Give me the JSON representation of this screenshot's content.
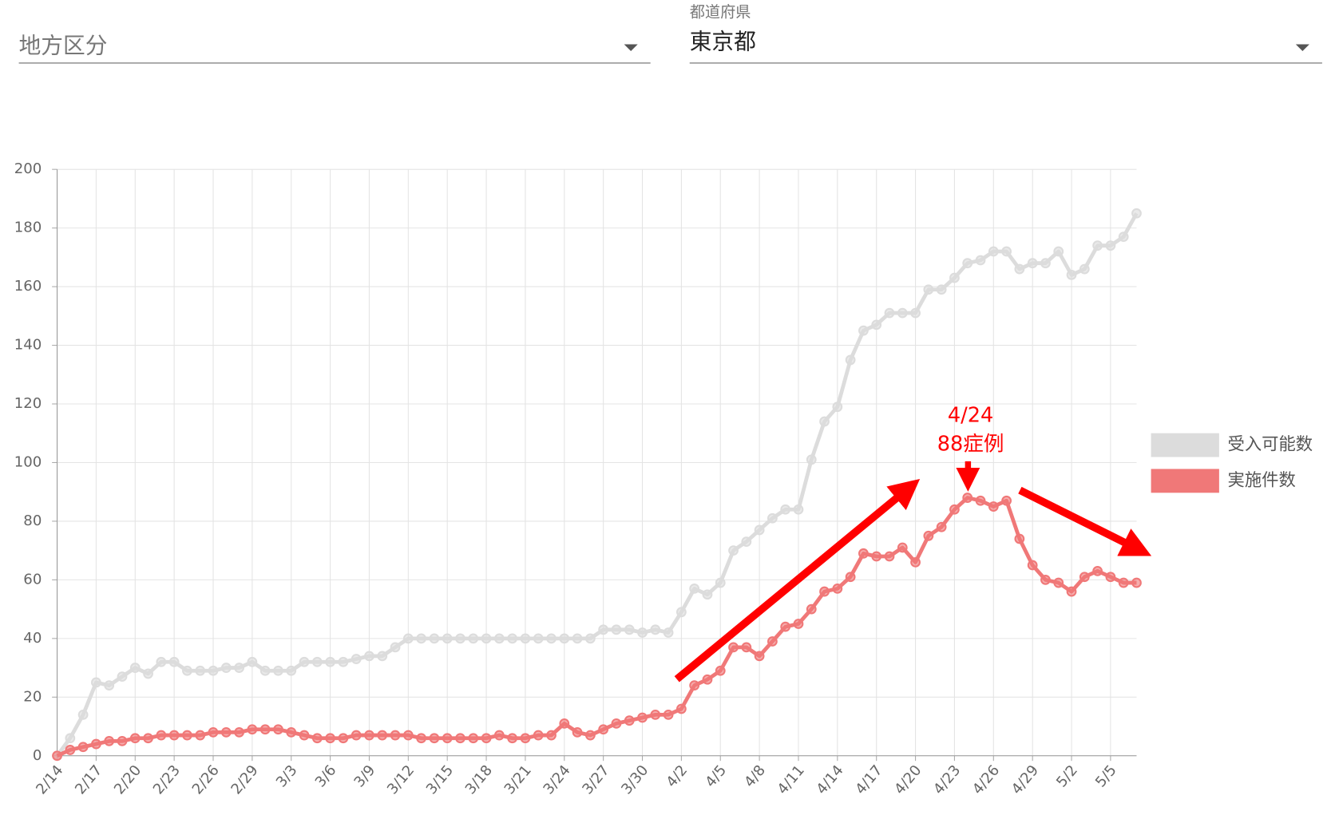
{
  "filters": [
    {
      "placeholder": "地方区分"
    },
    {
      "label": "都道府県",
      "value": "東京都"
    }
  ],
  "chart_data": {
    "type": "line",
    "categories": [
      "2/14",
      null,
      null,
      "2/17",
      null,
      null,
      "2/20",
      null,
      null,
      "2/23",
      null,
      null,
      "2/26",
      null,
      null,
      "2/29",
      null,
      null,
      "3/3",
      null,
      null,
      "3/6",
      null,
      null,
      "3/9",
      null,
      null,
      "3/12",
      null,
      null,
      "3/15",
      null,
      null,
      "3/18",
      null,
      null,
      "3/21",
      null,
      null,
      "3/24",
      null,
      null,
      "3/27",
      null,
      null,
      "3/30",
      null,
      null,
      "4/2",
      null,
      null,
      "4/5",
      null,
      null,
      "4/8",
      null,
      null,
      "4/11",
      null,
      null,
      "4/14",
      null,
      null,
      "4/17",
      null,
      null,
      "4/20",
      null,
      null,
      "4/23",
      null,
      null,
      "4/26",
      null,
      null,
      "4/29",
      null,
      null,
      "5/2",
      null,
      null,
      "5/5",
      null,
      null
    ],
    "series": [
      {
        "name": "受入可能数",
        "color": "#dcdcdc",
        "values": [
          0,
          6,
          14,
          25,
          24,
          27,
          30,
          28,
          32,
          32,
          29,
          29,
          29,
          30,
          30,
          32,
          29,
          29,
          29,
          32,
          32,
          32,
          32,
          33,
          34,
          34,
          37,
          40,
          40,
          40,
          40,
          40,
          40,
          40,
          40,
          40,
          40,
          40,
          40,
          40,
          40,
          40,
          43,
          43,
          43,
          42,
          43,
          42,
          49,
          57,
          55,
          59,
          70,
          73,
          77,
          81,
          84,
          84,
          101,
          114,
          119,
          135,
          145,
          147,
          151,
          151,
          151,
          159,
          159,
          163,
          168,
          169,
          172,
          172,
          166,
          168,
          168,
          172,
          164,
          166,
          174,
          174,
          177,
          185
        ]
      },
      {
        "name": "実施件数",
        "color": "#f07878",
        "values": [
          0,
          2,
          3,
          4,
          5,
          5,
          6,
          6,
          7,
          7,
          7,
          7,
          8,
          8,
          8,
          9,
          9,
          9,
          8,
          7,
          6,
          6,
          6,
          7,
          7,
          7,
          7,
          7,
          6,
          6,
          6,
          6,
          6,
          6,
          7,
          6,
          6,
          7,
          7,
          11,
          8,
          7,
          9,
          11,
          12,
          13,
          14,
          14,
          16,
          24,
          26,
          29,
          37,
          37,
          34,
          39,
          44,
          45,
          50,
          56,
          57,
          61,
          69,
          68,
          68,
          71,
          66,
          75,
          78,
          84,
          88,
          87,
          85,
          87,
          74,
          65,
          60,
          59,
          56,
          61,
          63,
          61,
          59,
          59
        ]
      }
    ],
    "ylim": [
      0,
      200
    ],
    "yticks": [
      0,
      20,
      40,
      60,
      80,
      100,
      120,
      140,
      160,
      180,
      200
    ],
    "grid": true,
    "legend": "right",
    "annotations": [
      "4/24",
      "88症例"
    ]
  }
}
